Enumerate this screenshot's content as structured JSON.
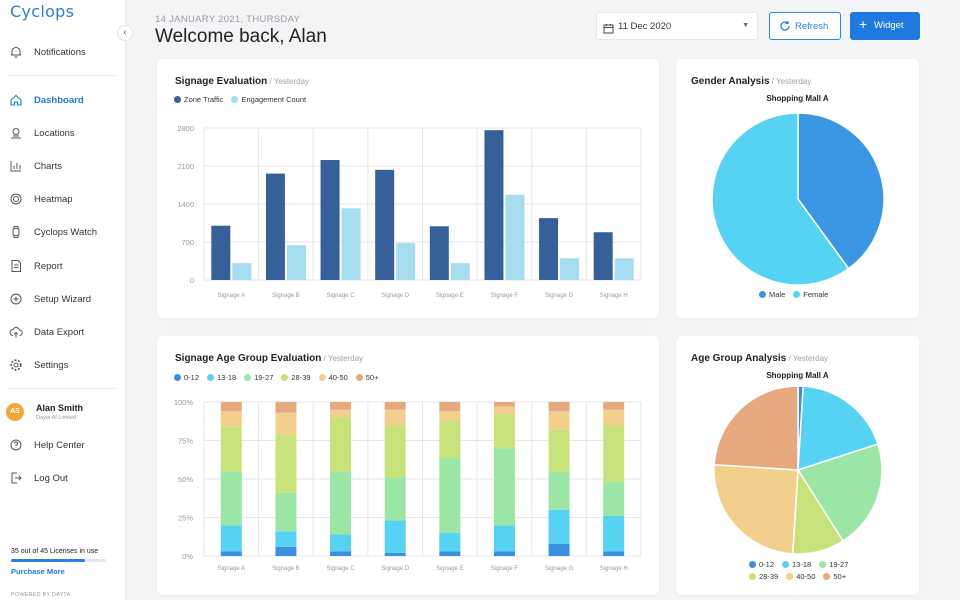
{
  "sidebar": {
    "logo": "Cyclops",
    "collapse_icon": "‹",
    "items": [
      {
        "label": "Notifications",
        "icon": "bell-icon"
      },
      {
        "label": "Dashboard",
        "icon": "home-icon",
        "active": true
      },
      {
        "label": "Locations",
        "icon": "location-icon"
      },
      {
        "label": "Charts",
        "icon": "chart-icon"
      },
      {
        "label": "Heatmap",
        "icon": "heatmap-icon"
      },
      {
        "label": "Cyclops Watch",
        "icon": "watch-icon"
      },
      {
        "label": "Report",
        "icon": "report-icon"
      },
      {
        "label": "Setup Wizard",
        "icon": "wizard-icon"
      },
      {
        "label": "Data Export",
        "icon": "cloud-upload-icon"
      },
      {
        "label": "Settings",
        "icon": "gear-icon"
      },
      {
        "label": "Help Center",
        "icon": "help-icon"
      },
      {
        "label": "Log Out",
        "icon": "logout-icon"
      }
    ],
    "user": {
      "initials": "AS",
      "name": "Alan Smith",
      "org": "Dayta AI Limited"
    },
    "licenses": {
      "text": "35 out of 45 Licenses in use",
      "used": 35,
      "total": 45
    },
    "purchase_label": "Purchase More",
    "powered_by": "POWERED BY DAYTA"
  },
  "header": {
    "date_line": "14 JANUARY 2021, THURSDAY",
    "welcome": "Welcome back, Alan",
    "date_picker_value": "11 Dec 2020",
    "refresh_label": "Refresh",
    "widget_label": "Widget"
  },
  "colors": {
    "accent": "#1f7ae0",
    "zone_traffic": "#35609a",
    "engagement": "#a6dcef",
    "male": "#3b97e3",
    "female": "#56d2f3"
  },
  "cards": {
    "signage_eval": {
      "title": "Signage Evaluation",
      "sub": " / Yesterday"
    },
    "gender": {
      "title": "Gender Analysis",
      "sub": " / Yesterday",
      "location": "Shopping Mall A"
    },
    "age_eval": {
      "title": "Signage Age Group Evaluation",
      "sub": " / Yesterday"
    },
    "age_analysis": {
      "title": "Age Group Analysis",
      "sub": " / Yesterday",
      "location": "Shopping Mall A"
    }
  },
  "chart_data": [
    {
      "id": "signage_eval",
      "type": "bar",
      "categories": [
        "Signage A",
        "Signage B",
        "Signage C",
        "Signage D",
        "Signage E",
        "Signage F",
        "Signage G",
        "Signage H"
      ],
      "series": [
        {
          "name": "Zone Traffic",
          "color": "#35609a",
          "values": [
            1000,
            1960,
            2210,
            2030,
            990,
            2760,
            1140,
            880
          ]
        },
        {
          "name": "Engagement Count",
          "color": "#a6dcef",
          "values": [
            310,
            640,
            1320,
            680,
            310,
            1570,
            400,
            400
          ]
        }
      ],
      "ylim": [
        0,
        2800
      ],
      "yticks": [
        0,
        700,
        1400,
        2100,
        2800
      ],
      "grid": true,
      "legend": "top-left"
    },
    {
      "id": "gender",
      "type": "pie",
      "title": "Shopping Mall A",
      "labels": [
        "Male",
        "Female"
      ],
      "values": [
        40,
        60
      ],
      "colors": [
        "#3b97e3",
        "#56d2f3"
      ],
      "legend": "bottom"
    },
    {
      "id": "age_eval",
      "type": "bar",
      "stacked": true,
      "percent": true,
      "categories": [
        "Signage A",
        "Signage B",
        "Signage C",
        "Signage D",
        "Signage E",
        "Signage F",
        "Signage G",
        "Signage H"
      ],
      "series": [
        {
          "name": "0-12",
          "color": "#3b8fe0",
          "values": [
            3,
            6,
            3,
            2,
            3,
            3,
            8,
            3
          ]
        },
        {
          "name": "13-18",
          "color": "#56d2f3",
          "values": [
            17,
            10,
            11,
            21,
            12,
            17,
            22,
            23
          ]
        },
        {
          "name": "19-27",
          "color": "#9ce6a5",
          "values": [
            35,
            25,
            41,
            28,
            49,
            50,
            25,
            22
          ]
        },
        {
          "name": "28-39",
          "color": "#c8e27a",
          "values": [
            29,
            38,
            35,
            34,
            24,
            22,
            27,
            37
          ]
        },
        {
          "name": "40-50",
          "color": "#f2cf8d",
          "values": [
            10,
            14,
            5,
            10,
            6,
            5,
            12,
            10
          ]
        },
        {
          "name": "50+",
          "color": "#e6a97e",
          "values": [
            6,
            7,
            5,
            5,
            6,
            3,
            6,
            5
          ]
        }
      ],
      "ylim": [
        0,
        100
      ],
      "yticks": [
        "0%",
        "25%",
        "50%",
        "75%",
        "100%"
      ],
      "grid": true,
      "legend": "top-left"
    },
    {
      "id": "age_analysis",
      "type": "pie",
      "title": "Shopping Mall A",
      "labels": [
        "0-12",
        "13-18",
        "19-27",
        "28-39",
        "40-50",
        "50+"
      ],
      "values": [
        1,
        19,
        21,
        10,
        25,
        24
      ],
      "colors": [
        "#3b8fe0",
        "#56d2f3",
        "#9ce6a5",
        "#c8e27a",
        "#f2cf8d",
        "#e6a97e"
      ],
      "legend": "bottom"
    }
  ]
}
